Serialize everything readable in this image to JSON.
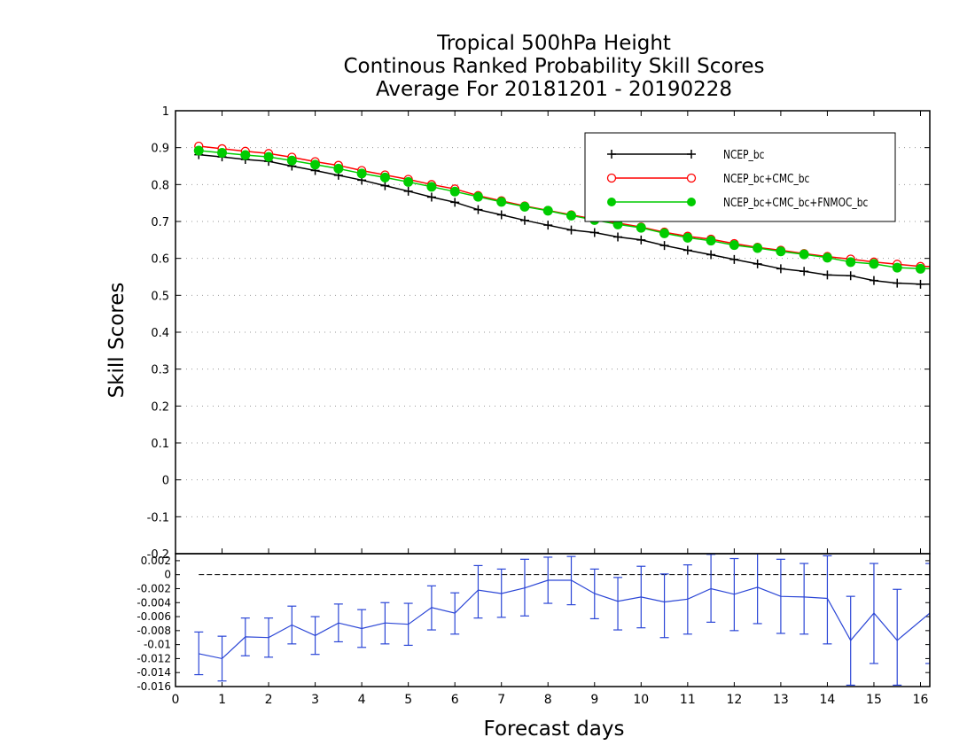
{
  "chart_data": [
    {
      "type": "line",
      "title": [
        "Tropical 500hPa Height",
        "Continous Ranked Probability Skill Scores",
        "Average For 20181201 - 20190228"
      ],
      "xlabel": "Forecast days",
      "ylabel": "Skill Scores",
      "xlim": [
        0,
        16.2
      ],
      "ylim": [
        -0.2,
        1
      ],
      "yticks": [
        "1",
        "0.9",
        "0.8",
        "0.7",
        "0.6",
        "0.5",
        "0.4",
        "0.3",
        "0.2",
        "0.1",
        "0",
        "-0.1",
        "-0.2"
      ],
      "grid": true,
      "legend_position": "top-right",
      "x": [
        0.5,
        1,
        1.5,
        2,
        2.5,
        3,
        3.5,
        4,
        4.5,
        5,
        5.5,
        6,
        6.5,
        7,
        7.5,
        8,
        8.5,
        9,
        9.5,
        10,
        10.5,
        11,
        11.5,
        12,
        12.5,
        13,
        13.5,
        14,
        14.5,
        15,
        15.5,
        16
      ],
      "series": [
        {
          "name": "NCEP_bc",
          "color": "#000000",
          "marker": "plus",
          "values": [
            0.881,
            0.875,
            0.868,
            0.863,
            0.85,
            0.838,
            0.825,
            0.812,
            0.797,
            0.782,
            0.766,
            0.752,
            0.732,
            0.718,
            0.703,
            0.69,
            0.677,
            0.67,
            0.658,
            0.65,
            0.635,
            0.622,
            0.61,
            0.597,
            0.585,
            0.572,
            0.565,
            0.555,
            0.553,
            0.54,
            0.533,
            0.53
          ]
        },
        {
          "name": "NCEP_bc+CMC_bc",
          "color": "#ff0000",
          "marker": "open-circle",
          "values": [
            0.904,
            0.897,
            0.89,
            0.884,
            0.874,
            0.862,
            0.852,
            0.838,
            0.826,
            0.814,
            0.8,
            0.788,
            0.77,
            0.756,
            0.742,
            0.73,
            0.718,
            0.706,
            0.696,
            0.685,
            0.671,
            0.66,
            0.652,
            0.64,
            0.63,
            0.622,
            0.613,
            0.605,
            0.598,
            0.59,
            0.584,
            0.578
          ]
        },
        {
          "name": "NCEP_bc+CMC_bc+FNMOC_bc",
          "color": "#00cc00",
          "marker": "filled-circle",
          "values": [
            0.892,
            0.886,
            0.88,
            0.875,
            0.865,
            0.854,
            0.843,
            0.83,
            0.819,
            0.807,
            0.794,
            0.781,
            0.767,
            0.753,
            0.74,
            0.729,
            0.716,
            0.704,
            0.692,
            0.683,
            0.668,
            0.656,
            0.648,
            0.636,
            0.628,
            0.619,
            0.611,
            0.602,
            0.59,
            0.585,
            0.575,
            0.572
          ]
        }
      ]
    },
    {
      "type": "line",
      "xlim": [
        0,
        16.2
      ],
      "ylim": [
        -0.016,
        0.003
      ],
      "xticks": [
        "0",
        "1",
        "2",
        "3",
        "4",
        "5",
        "6",
        "7",
        "8",
        "9",
        "10",
        "11",
        "12",
        "13",
        "14",
        "15",
        "16"
      ],
      "yticks": [
        "0.002",
        "0",
        "-0.002",
        "-0.004",
        "-0.006",
        "-0.008",
        "-0.01",
        "-0.012",
        "-0.014",
        "-0.016"
      ],
      "zero_line": true,
      "series": [
        {
          "color": "#2b46d6",
          "marker": "none",
          "error_bars": true,
          "x": [
            0.5,
            1,
            1.5,
            2,
            2.5,
            3,
            3.5,
            4,
            4.5,
            5,
            5.5,
            6,
            6.5,
            7,
            7.5,
            8,
            8.5,
            9,
            9.5,
            10,
            10.5,
            11,
            11.5,
            12,
            12.5,
            13,
            13.5,
            14,
            14.5,
            15,
            15.5,
            16.2
          ],
          "values": [
            -0.0113,
            -0.012,
            -0.0089,
            -0.009,
            -0.0072,
            -0.0087,
            -0.0069,
            -0.0077,
            -0.0069,
            -0.0071,
            -0.0047,
            -0.0055,
            -0.0022,
            -0.0027,
            -0.0019,
            -0.0008,
            -0.0008,
            -0.0027,
            -0.0038,
            -0.0032,
            -0.0039,
            -0.0035,
            -0.002,
            -0.0028,
            -0.0018,
            -0.0031,
            -0.0032,
            -0.0034,
            -0.0094,
            -0.0055,
            -0.0094,
            -0.0055
          ],
          "err_low": [
            -0.0143,
            -0.0152,
            -0.0116,
            -0.0118,
            -0.0099,
            -0.0114,
            -0.0096,
            -0.0104,
            -0.0099,
            -0.0101,
            -0.0079,
            -0.0085,
            -0.0062,
            -0.0061,
            -0.0059,
            -0.0041,
            -0.0043,
            -0.0063,
            -0.0079,
            -0.0076,
            -0.009,
            -0.0085,
            -0.0068,
            -0.008,
            -0.007,
            -0.0084,
            -0.0085,
            -0.0099,
            -0.0158,
            -0.0127,
            -0.0158,
            -0.0127
          ],
          "err_high": [
            -0.0082,
            -0.0088,
            -0.0062,
            -0.0062,
            -0.0045,
            -0.006,
            -0.0042,
            -0.005,
            -0.004,
            -0.0041,
            -0.0016,
            -0.0026,
            0.0013,
            0.0008,
            0.0022,
            0.0025,
            0.0026,
            0.0008,
            -0.0004,
            0.0012,
            0.0001,
            0.0014,
            0.0029,
            0.0023,
            0.0034,
            0.0022,
            0.0016,
            0.0027,
            -0.0031,
            0.0016,
            -0.0021,
            0.0016
          ]
        }
      ]
    }
  ]
}
